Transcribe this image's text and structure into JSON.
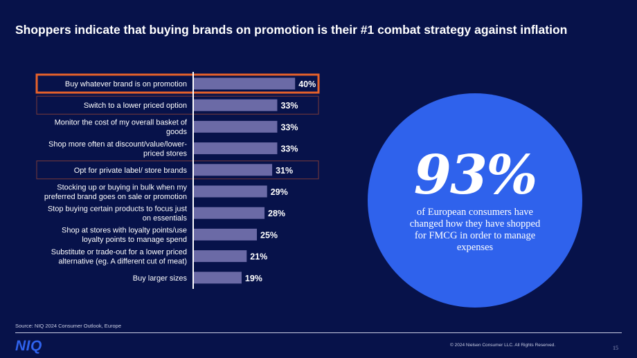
{
  "title": "Shoppers indicate that buying brands on promotion is their #1 combat strategy against inflation",
  "chart_data": {
    "type": "bar",
    "orientation": "horizontal",
    "categories": [
      [
        "Buy whatever brand is on promotion"
      ],
      [
        "Switch to a lower priced option"
      ],
      [
        "Monitor the cost of my overall basket of",
        "goods"
      ],
      [
        "Shop more often at discount/value/lower-",
        "priced stores"
      ],
      [
        "Opt for private label/ store brands"
      ],
      [
        "Stocking up or buying in bulk when my",
        "preferred brand goes on sale or promotion"
      ],
      [
        "Stop buying certain products to focus just",
        "on essentials"
      ],
      [
        "Shop at stores with loyalty points/use",
        "loyalty points to manage spend"
      ],
      [
        "Substitute or trade-out for a lower priced",
        "alternative (eg. A different cut of meat)"
      ],
      [
        "Buy larger sizes"
      ]
    ],
    "values": [
      40,
      33,
      33,
      33,
      31,
      29,
      28,
      25,
      21,
      19
    ],
    "value_labels": [
      "40%",
      "33%",
      "33%",
      "33%",
      "31%",
      "29%",
      "28%",
      "25%",
      "21%",
      "19%"
    ],
    "highlighted": [
      true,
      false,
      false,
      false,
      false,
      false,
      false,
      false,
      false,
      false
    ],
    "outlined": [
      true,
      true,
      false,
      false,
      true,
      false,
      false,
      false,
      false,
      false
    ],
    "bar_color": "#6b6aa6",
    "highlight_color": "#e8622a",
    "outline_color": "#7a3b3a"
  },
  "callout": {
    "value": "93%",
    "text": [
      "of European consumers have",
      "changed how they have shopped",
      "for FMCG in order to manage",
      "expenses"
    ],
    "color": "#2f62ec"
  },
  "footer": {
    "source": "Source: NIQ 2024 Consumer Outlook, Europe",
    "logo": "NIQ",
    "copyright": "© 2024 Nielsen Consumer LLC. All Rights Reserved.",
    "page": "15"
  }
}
